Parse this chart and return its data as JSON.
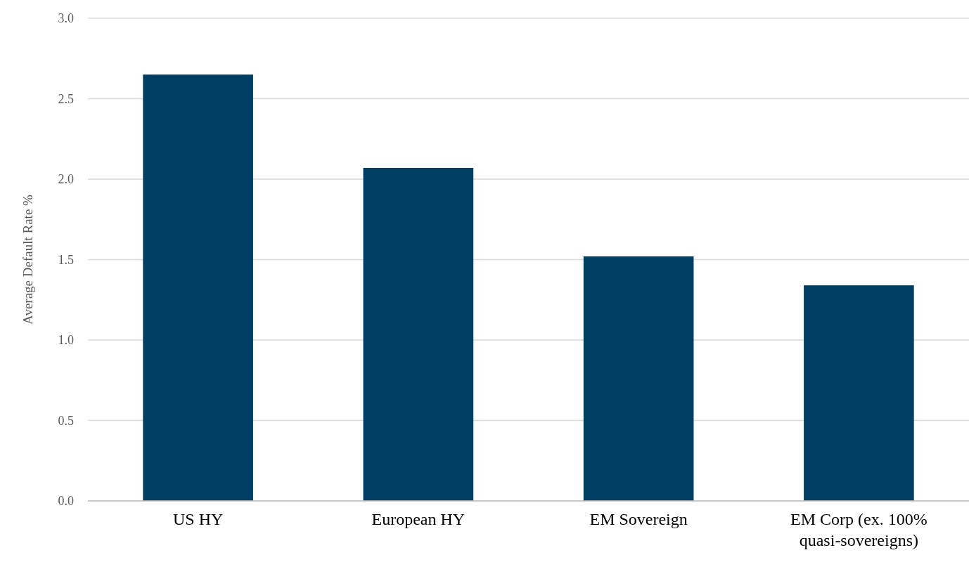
{
  "chart_data": {
    "type": "bar",
    "ylabel": "Average Default Rate %",
    "categories": [
      "US HY",
      "European HY",
      "EM Sovereign",
      "EM Corp (ex. 100% quasi-sovereigns)"
    ],
    "values": [
      2.65,
      2.07,
      1.52,
      1.34
    ],
    "color": "#003f63",
    "ylim": [
      0,
      3
    ],
    "yticks": [
      {
        "value": 0,
        "label": "0.0"
      },
      {
        "value": 0.5,
        "label": "0.5"
      },
      {
        "value": 1,
        "label": "1.0"
      },
      {
        "value": 1.5,
        "label": "1.5"
      },
      {
        "value": 2,
        "label": "2.0"
      },
      {
        "value": 2.5,
        "label": "2.5"
      },
      {
        "value": 3,
        "label": "3.0"
      }
    ],
    "grid": "y"
  }
}
